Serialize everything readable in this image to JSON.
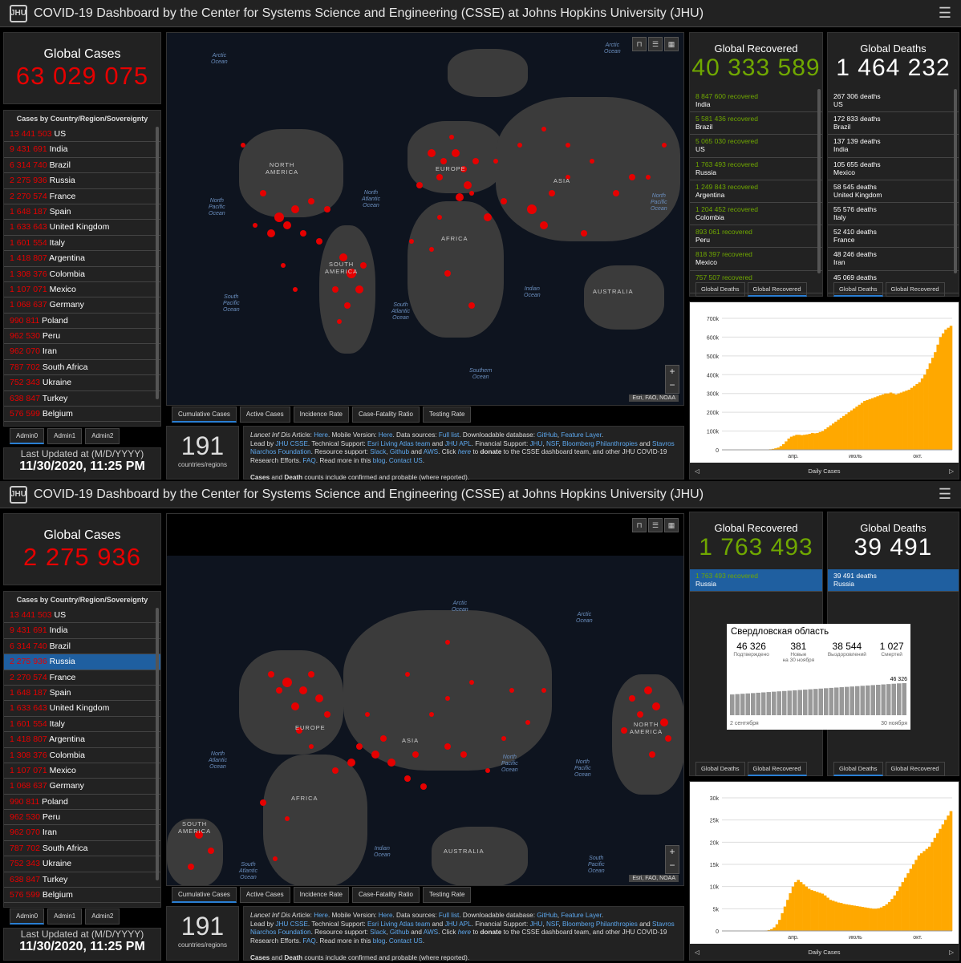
{
  "header": {
    "title": "COVID-19 Dashboard by the Center for Systems Science and Engineering (CSSE) at Johns Hopkins University (JHU)",
    "logo": "JHU",
    "menu_icon": "☰"
  },
  "colors": {
    "cases_red": "#e60000",
    "recovered_green": "#70a800",
    "selected_blue": "#1f5fa0",
    "chart_orange": "#ffa800"
  },
  "countries": [
    {
      "num": "13 441 503",
      "name": "US"
    },
    {
      "num": "9 431 691",
      "name": "India"
    },
    {
      "num": "6 314 740",
      "name": "Brazil"
    },
    {
      "num": "2 275 936",
      "name": "Russia"
    },
    {
      "num": "2 270 574",
      "name": "France"
    },
    {
      "num": "1 648 187",
      "name": "Spain"
    },
    {
      "num": "1 633 643",
      "name": "United Kingdom"
    },
    {
      "num": "1 601 554",
      "name": "Italy"
    },
    {
      "num": "1 418 807",
      "name": "Argentina"
    },
    {
      "num": "1 308 376",
      "name": "Colombia"
    },
    {
      "num": "1 107 071",
      "name": "Mexico"
    },
    {
      "num": "1 068 637",
      "name": "Germany"
    },
    {
      "num": "990 811",
      "name": "Poland"
    },
    {
      "num": "962 530",
      "name": "Peru"
    },
    {
      "num": "962 070",
      "name": "Iran"
    },
    {
      "num": "787 702",
      "name": "South Africa"
    },
    {
      "num": "752 343",
      "name": "Ukraine"
    },
    {
      "num": "638 847",
      "name": "Turkey"
    },
    {
      "num": "576 599",
      "name": "Belgium"
    }
  ],
  "list_header": "Cases by Country/Region/Sovereignty",
  "admin_tabs": [
    "Admin0",
    "Admin1",
    "Admin2"
  ],
  "last_updated_label": "Last Updated at (M/D/YYYY)",
  "last_updated_value": "11/30/2020, 11:25 PM",
  "map_tabs": [
    "Cumulative Cases",
    "Active Cases",
    "Incidence Rate",
    "Case-Fatality Ratio",
    "Testing Rate"
  ],
  "map_attribution": "Esri, FAO, NOAA",
  "map_buttons": {
    "bookmark": "⊓",
    "list": "☰",
    "grid": "▦",
    "zoom_in": "+",
    "zoom_out": "−"
  },
  "countries_count": "191",
  "countries_label": "countries/regions",
  "info": {
    "lancet": "Lancet Inf Dis",
    "t1": " Article: ",
    "here1": "Here",
    "t2": ". Mobile Version: ",
    "here2": "Here",
    "t3": ". Data sources: ",
    "fulllist": "Full list",
    "t4": ". Downloadable database: ",
    "github": "GitHub",
    "t5": ", ",
    "featurelayer": "Feature Layer",
    "t6": ".",
    "t7": "Lead by ",
    "jhucsse": "JHU CSSE",
    "t8": ". Technical Support: ",
    "esri": "Esri Living Atlas team",
    "t9": " and ",
    "jhuapl": "JHU APL",
    "t10": ". Financial Support: ",
    "jhu": "JHU",
    "nsf": "NSF",
    "bloomberg": "Bloomberg Philanthropies",
    "t11": " and ",
    "stavros": "Stavros Niarchos Foundation",
    "t12": ". Resource support: ",
    "slack": "Slack",
    "github2": "Github",
    "aws": "AWS",
    "t13": ". Click ",
    "here3": "here",
    "t14": " to ",
    "donate": "donate",
    "t15": " to the CSSE dashboard team, and other JHU COVID-19 Research Efforts. ",
    "faq": "FAQ",
    "t16": ". Read more in this ",
    "blog": "blog",
    "t17": ". ",
    "contact": "Contact US",
    "t18": ".",
    "cases": "Cases",
    "and": " and ",
    "death": "Death",
    "t19": " counts include confirmed and probable (where reported)."
  },
  "subtabs": {
    "deaths": "Global Deaths",
    "recovered": "Global Recovered"
  },
  "chart_footer": "Daily Cases",
  "ocean_labels": {
    "arctic": "Arctic\nOcean",
    "npac": "North\nPacific\nOcean",
    "natl": "North\nAtlantic\nOcean",
    "spac": "South\nPacific\nOcean",
    "satl": "South\nAtlantic\nOcean",
    "indian": "Indian\nOcean",
    "southern": "Southern\nOcean"
  },
  "continent_labels": {
    "namerica": "NORTH\nAMERICA",
    "samerica": "SOUTH\nAMERICA",
    "europe": "EUROPE",
    "africa": "AFRICA",
    "asia": "ASIA",
    "australia": "AUSTRALIA"
  },
  "top": {
    "global_cases_label": "Global Cases",
    "global_cases": "63 029 075",
    "recovered_label": "Global Recovered",
    "recovered": "40 333 589",
    "deaths_label": "Global Deaths",
    "deaths": "1 464 232",
    "recovered_rows": [
      {
        "num": "8 847 600",
        "suffix": "recovered",
        "name": "India"
      },
      {
        "num": "5 581 436",
        "suffix": "recovered",
        "name": "Brazil"
      },
      {
        "num": "5 065 030",
        "suffix": "recovered",
        "name": "US"
      },
      {
        "num": "1 763 493",
        "suffix": "recovered",
        "name": "Russia"
      },
      {
        "num": "1 249 843",
        "suffix": "recovered",
        "name": "Argentina"
      },
      {
        "num": "1 204 452",
        "suffix": "recovered",
        "name": "Colombia"
      },
      {
        "num": "893 061",
        "suffix": "recovered",
        "name": "Peru"
      },
      {
        "num": "818 397",
        "suffix": "recovered",
        "name": "Mexico"
      },
      {
        "num": "757 507",
        "suffix": "recovered",
        "name": ""
      }
    ],
    "death_rows": [
      {
        "num": "267 306",
        "suffix": "deaths",
        "name": "US"
      },
      {
        "num": "172 833",
        "suffix": "deaths",
        "name": "Brazil"
      },
      {
        "num": "137 139",
        "suffix": "deaths",
        "name": "India"
      },
      {
        "num": "105 655",
        "suffix": "deaths",
        "name": "Mexico"
      },
      {
        "num": "58 545",
        "suffix": "deaths",
        "name": "United Kingdom"
      },
      {
        "num": "55 576",
        "suffix": "deaths",
        "name": "Italy"
      },
      {
        "num": "52 410",
        "suffix": "deaths",
        "name": "France"
      },
      {
        "num": "48 246",
        "suffix": "deaths",
        "name": "Iran"
      },
      {
        "num": "45 069",
        "suffix": "deaths",
        "name": ""
      }
    ]
  },
  "bottom": {
    "global_cases_label": "Global Cases",
    "global_cases": "2 275 936",
    "recovered_label": "Global Recovered",
    "recovered": "1 763 493",
    "deaths_label": "Global Deaths",
    "deaths": "39 491",
    "recovered_rows": [
      {
        "num": "1 763 493",
        "suffix": "recovered",
        "name": "Russia"
      }
    ],
    "death_rows": [
      {
        "num": "39 491",
        "suffix": "deaths",
        "name": "Russia"
      }
    ],
    "selected_country": "Russia",
    "popup": {
      "title": "Свердловская область",
      "stats": [
        {
          "v": "46 326",
          "l": "Подтверждено"
        },
        {
          "v": "381",
          "l": "Новые\nна 30 ноября"
        },
        {
          "v": "38 544",
          "l": "Выздоровлений"
        },
        {
          "v": "1 027",
          "l": "Смертей"
        }
      ],
      "peak_label": "46 326",
      "start_label": "2 сентября",
      "end_label": "30 ноября"
    }
  },
  "chart_data": [
    {
      "type": "bar",
      "title": "",
      "xlabel": "Daily Cases",
      "ylabel": "",
      "y_ticks": [
        "0",
        "100k",
        "200k",
        "300k",
        "400k",
        "500k",
        "600k",
        "700k"
      ],
      "x_ticks": [
        "апр.",
        "июль",
        "окт."
      ],
      "ylim": [
        0,
        700000
      ],
      "color": "#ffa800",
      "series": [
        {
          "values": [
            0,
            0,
            0,
            0,
            0,
            0,
            0,
            0,
            0,
            0,
            0,
            0,
            0,
            0,
            0,
            1000,
            2000,
            2000,
            3000,
            5000,
            8000,
            12000,
            20000,
            30000,
            45000,
            60000,
            70000,
            75000,
            80000,
            80000,
            78000,
            80000,
            82000,
            85000,
            90000,
            88000,
            90000,
            95000,
            100000,
            110000,
            120000,
            130000,
            140000,
            150000,
            160000,
            170000,
            180000,
            190000,
            200000,
            210000,
            220000,
            230000,
            240000,
            250000,
            260000,
            265000,
            270000,
            275000,
            280000,
            285000,
            290000,
            295000,
            300000,
            300000,
            305000,
            300000,
            295000,
            300000,
            305000,
            310000,
            315000,
            320000,
            330000,
            340000,
            350000,
            360000,
            380000,
            400000,
            430000,
            460000,
            490000,
            520000,
            560000,
            600000,
            620000,
            640000,
            650000,
            660000
          ]
        }
      ]
    },
    {
      "type": "bar",
      "title": "",
      "xlabel": "Daily Cases",
      "ylabel": "",
      "y_ticks": [
        "0",
        "5k",
        "10k",
        "15k",
        "20k",
        "25k",
        "30k"
      ],
      "x_ticks": [
        "апр.",
        "июль",
        "окт."
      ],
      "ylim": [
        0,
        30000
      ],
      "color": "#ffa800",
      "series": [
        {
          "values": [
            0,
            0,
            0,
            0,
            0,
            0,
            0,
            0,
            0,
            0,
            0,
            0,
            0,
            0,
            0,
            50,
            100,
            200,
            400,
            800,
            1500,
            2500,
            4000,
            5500,
            7000,
            8500,
            10000,
            11000,
            11500,
            11000,
            10500,
            10000,
            9500,
            9200,
            9000,
            8800,
            8600,
            8400,
            8000,
            7500,
            7000,
            6800,
            6600,
            6400,
            6300,
            6100,
            6000,
            5900,
            5800,
            5700,
            5600,
            5500,
            5400,
            5300,
            5200,
            5100,
            5000,
            5000,
            5100,
            5300,
            5600,
            6000,
            6500,
            7200,
            8000,
            9000,
            10000,
            11000,
            12000,
            13000,
            14000,
            15000,
            16000,
            17000,
            17500,
            18000,
            18500,
            19000,
            20000,
            21000,
            22000,
            23000,
            24000,
            25000,
            26000,
            27000
          ]
        }
      ]
    },
    {
      "type": "bar",
      "title": "Свердловская область",
      "xlabel": "",
      "x_ticks": [
        "2 сентября",
        "30 ноября"
      ],
      "ylabel": "",
      "color": "#999999",
      "series": [
        {
          "values": [
            30000,
            30500,
            31000,
            31500,
            32000,
            32500,
            33000,
            33500,
            34000,
            34500,
            35000,
            35500,
            36000,
            36500,
            37000,
            37500,
            38000,
            38500,
            39000,
            39500,
            40000,
            40500,
            41000,
            41500,
            42000,
            42500,
            43000,
            43500,
            44000,
            44500,
            45000,
            45500,
            46000,
            46326
          ]
        }
      ]
    }
  ]
}
